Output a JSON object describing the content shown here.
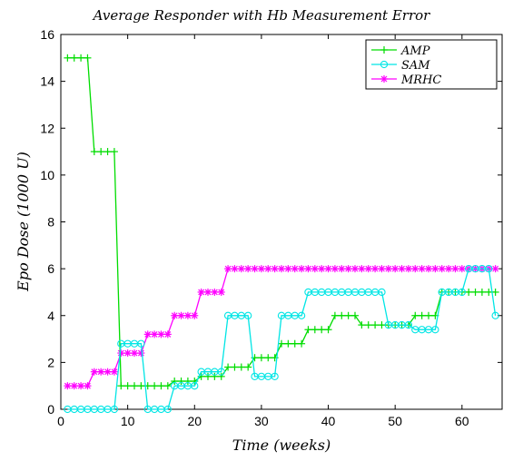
{
  "chart_data": {
    "type": "line",
    "title": "Average Responder with Hb Measurement Error",
    "xlabel": "Time (weeks)",
    "ylabel": "Epo Dose (1000 U)",
    "xlim": [
      0,
      66
    ],
    "ylim": [
      0,
      16
    ],
    "xticks": [
      0,
      10,
      20,
      30,
      40,
      50,
      60
    ],
    "yticks": [
      0,
      2,
      4,
      6,
      8,
      10,
      12,
      14,
      16
    ],
    "grid": false,
    "legend_position": "top-right",
    "series": [
      {
        "name": "AMP",
        "color": "#00dd00",
        "marker": "plus",
        "x": [
          1,
          2,
          3,
          4,
          5,
          6,
          7,
          8,
          9,
          10,
          11,
          12,
          13,
          14,
          15,
          16,
          17,
          18,
          19,
          20,
          21,
          22,
          23,
          24,
          25,
          26,
          27,
          28,
          29,
          30,
          31,
          32,
          33,
          34,
          35,
          36,
          37,
          38,
          39,
          40,
          41,
          42,
          43,
          44,
          45,
          46,
          47,
          48,
          49,
          50,
          51,
          52,
          53,
          54,
          55,
          56,
          57,
          58,
          59,
          60,
          61,
          62,
          63,
          64,
          65
        ],
        "y": [
          15,
          15,
          15,
          15,
          11,
          11,
          11,
          11,
          1,
          1,
          1,
          1,
          1,
          1,
          1,
          1,
          1.2,
          1.2,
          1.2,
          1.2,
          1.4,
          1.4,
          1.4,
          1.4,
          1.8,
          1.8,
          1.8,
          1.8,
          2.2,
          2.2,
          2.2,
          2.2,
          2.8,
          2.8,
          2.8,
          2.8,
          3.4,
          3.4,
          3.4,
          3.4,
          4,
          4,
          4,
          4,
          3.6,
          3.6,
          3.6,
          3.6,
          3.6,
          3.6,
          3.6,
          3.6,
          4,
          4,
          4,
          4,
          5,
          5,
          5,
          5,
          5,
          5,
          5,
          5,
          5
        ]
      },
      {
        "name": "SAM",
        "color": "#00e5e5",
        "marker": "circle",
        "x": [
          1,
          2,
          3,
          4,
          5,
          6,
          7,
          8,
          9,
          10,
          11,
          12,
          13,
          14,
          15,
          16,
          17,
          18,
          19,
          20,
          21,
          22,
          23,
          24,
          25,
          26,
          27,
          28,
          29,
          30,
          31,
          32,
          33,
          34,
          35,
          36,
          37,
          38,
          39,
          40,
          41,
          42,
          43,
          44,
          45,
          46,
          47,
          48,
          49,
          50,
          51,
          52,
          53,
          54,
          55,
          56,
          57,
          58,
          59,
          60,
          61,
          62,
          63,
          64,
          65
        ],
        "y": [
          0,
          0,
          0,
          0,
          0,
          0,
          0,
          0,
          2.8,
          2.8,
          2.8,
          2.8,
          0,
          0,
          0,
          0,
          1,
          1,
          1,
          1,
          1.6,
          1.6,
          1.6,
          1.6,
          4,
          4,
          4,
          4,
          1.4,
          1.4,
          1.4,
          1.4,
          4,
          4,
          4,
          4,
          5,
          5,
          5,
          5,
          5,
          5,
          5,
          5,
          5,
          5,
          5,
          5,
          3.6,
          3.6,
          3.6,
          3.6,
          3.4,
          3.4,
          3.4,
          3.4,
          5,
          5,
          5,
          5,
          6,
          6,
          6,
          6,
          4
        ]
      },
      {
        "name": "MRHC",
        "color": "#ff00ff",
        "marker": "star",
        "x": [
          1,
          2,
          3,
          4,
          5,
          6,
          7,
          8,
          9,
          10,
          11,
          12,
          13,
          14,
          15,
          16,
          17,
          18,
          19,
          20,
          21,
          22,
          23,
          24,
          25,
          26,
          27,
          28,
          29,
          30,
          31,
          32,
          33,
          34,
          35,
          36,
          37,
          38,
          39,
          40,
          41,
          42,
          43,
          44,
          45,
          46,
          47,
          48,
          49,
          50,
          51,
          52,
          53,
          54,
          55,
          56,
          57,
          58,
          59,
          60,
          61,
          62,
          63,
          64,
          65
        ],
        "y": [
          1,
          1,
          1,
          1,
          1.6,
          1.6,
          1.6,
          1.6,
          2.4,
          2.4,
          2.4,
          2.4,
          3.2,
          3.2,
          3.2,
          3.2,
          4,
          4,
          4,
          4,
          5,
          5,
          5,
          5,
          6,
          6,
          6,
          6,
          6,
          6,
          6,
          6,
          6,
          6,
          6,
          6,
          6,
          6,
          6,
          6,
          6,
          6,
          6,
          6,
          6,
          6,
          6,
          6,
          6,
          6,
          6,
          6,
          6,
          6,
          6,
          6,
          6,
          6,
          6,
          6,
          6,
          6,
          6,
          6,
          6
        ]
      }
    ]
  }
}
